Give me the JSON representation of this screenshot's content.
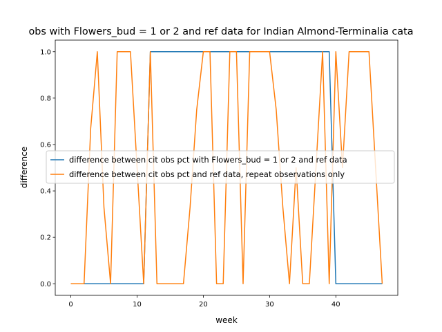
{
  "chart_data": {
    "type": "line",
    "title": "obs with Flowers_bud = 1 or 2 and ref data for Indian Almond-Terminalia cata",
    "xlabel": "week",
    "ylabel": "difference",
    "xlim": [
      -2.35,
      49.35
    ],
    "ylim": [
      -0.05,
      1.05
    ],
    "xticks": [
      0,
      10,
      20,
      30,
      40
    ],
    "yticks": [
      0.0,
      0.2,
      0.4,
      0.6,
      0.8,
      1.0
    ],
    "xtick_labels": [
      "0",
      "10",
      "20",
      "30",
      "40"
    ],
    "ytick_labels": [
      "0.0",
      "0.2",
      "0.4",
      "0.6",
      "0.8",
      "1.0"
    ],
    "legend_position": "center-right",
    "series": [
      {
        "name": "difference between cit obs pct with Flowers_bud = 1 or 2 and ref data",
        "color": "#1f77b4",
        "x": [
          0,
          1,
          2,
          3,
          4,
          5,
          6,
          7,
          8,
          9,
          10,
          11,
          12,
          13,
          14,
          15,
          16,
          17,
          18,
          19,
          20,
          21,
          22,
          23,
          24,
          25,
          26,
          27,
          28,
          29,
          30,
          31,
          32,
          33,
          34,
          35,
          36,
          37,
          38,
          39,
          40,
          41,
          42,
          43,
          44,
          45,
          46,
          47
        ],
        "y": [
          0,
          0,
          0,
          0,
          0,
          0,
          0,
          0,
          0,
          0,
          0,
          0,
          1,
          1,
          1,
          1,
          1,
          1,
          1,
          1,
          1,
          1,
          1,
          1,
          1,
          1,
          1,
          1,
          1,
          1,
          1,
          1,
          1,
          1,
          1,
          1,
          1,
          1,
          1,
          1,
          0,
          0,
          0,
          0,
          0,
          0,
          0,
          0
        ]
      },
      {
        "name": "difference between cit obs pct and ref data, repeat observations only",
        "color": "#ff7f0e",
        "x": [
          0,
          1,
          2,
          3,
          4,
          5,
          6,
          7,
          8,
          9,
          10,
          11,
          12,
          13,
          14,
          15,
          16,
          17,
          18,
          19,
          20,
          21,
          22,
          23,
          24,
          25,
          26,
          27,
          28,
          29,
          30,
          31,
          32,
          33,
          34,
          35,
          36,
          37,
          38,
          39,
          40,
          41,
          42,
          43,
          44,
          45,
          46,
          47
        ],
        "y": [
          0,
          0,
          0,
          0.67,
          1,
          0.33,
          0,
          1,
          1,
          1,
          0.5,
          0,
          1,
          0,
          0,
          0,
          0,
          0,
          0.33,
          0.75,
          1,
          1,
          0,
          0,
          1,
          1,
          0,
          1,
          1,
          1,
          1,
          0.75,
          0.33,
          0,
          0.5,
          0,
          0,
          0.5,
          1,
          0,
          1,
          0.5,
          1,
          1,
          1,
          1,
          0.5,
          0
        ]
      }
    ]
  }
}
